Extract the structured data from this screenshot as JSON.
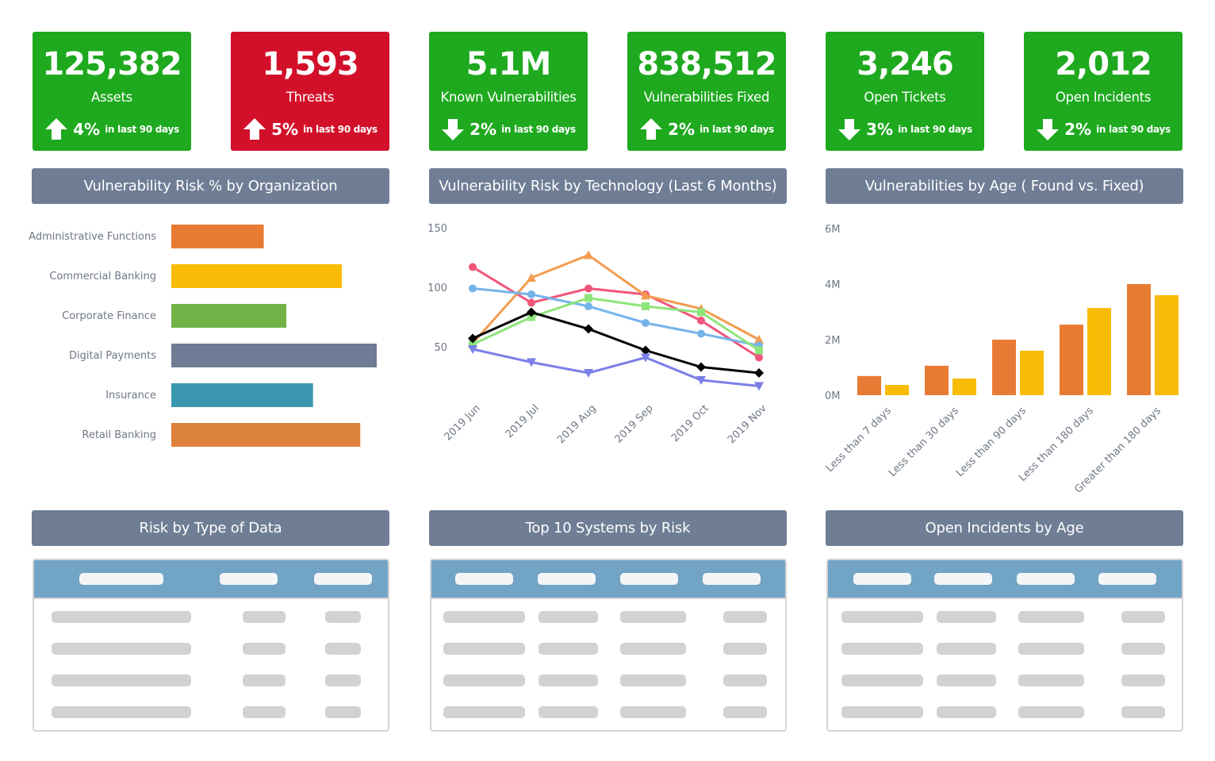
{
  "kpis": [
    {
      "value": "125,382",
      "label": "Assets",
      "direction": "up",
      "pct": "4%",
      "period": "in last 90 days",
      "color": "#1ea91e"
    },
    {
      "value": "1,593",
      "label": "Threats",
      "direction": "up",
      "pct": "5%",
      "period": "in last 90 days",
      "color": "#d2102a"
    },
    {
      "value": "5.1M",
      "label": "Known Vulnerabilities",
      "direction": "down",
      "pct": "2%",
      "period": "in last 90 days",
      "color": "#1ea91e"
    },
    {
      "value": "838,512",
      "label": "Vulnerabilities Fixed",
      "direction": "up",
      "pct": "2%",
      "period": "in last 90 days",
      "color": "#1ea91e"
    },
    {
      "value": "3,246",
      "label": "Open Tickets",
      "direction": "down",
      "pct": "3%",
      "period": "in last 90 days",
      "color": "#1ea91e"
    },
    {
      "value": "2,012",
      "label": "Open Incidents",
      "direction": "down",
      "pct": "2%",
      "period": "in last 90 days",
      "color": "#1ea91e"
    }
  ],
  "panels": {
    "org_title": "Vulnerability Risk % by Organization",
    "tech_title": "Vulnerability Risk by Technology (Last 6 Months)",
    "age_title": "Vulnerabilities by Age ( Found vs. Fixed)",
    "data_type_title": "Risk by Type of Data",
    "systems_title": "Top 10 Systems by Risk",
    "incidents_title": "Open Incidents by Age"
  },
  "chart_data": [
    {
      "type": "bar",
      "orientation": "horizontal",
      "categories": [
        "Administrative Functions",
        "Commercial Banking",
        "Corporate Finance",
        "Digital Payments",
        "Insurance",
        "Retail Banking"
      ],
      "values": [
        45,
        83,
        56,
        100,
        69,
        92
      ],
      "colors": [
        "#e87b33",
        "#f9bc06",
        "#72b347",
        "#6e7c96",
        "#3b97b0",
        "#dd823c"
      ],
      "grid": false
    },
    {
      "type": "line",
      "categories": [
        "2019 Jun",
        "2019 Jul",
        "2019 Aug",
        "2019 Sep",
        "2019 Oct",
        "2019 Nov"
      ],
      "yticks": [
        "50",
        "100",
        "150"
      ],
      "ylim": [
        0,
        150
      ],
      "grid": false,
      "series": [
        {
          "values": [
            117,
            87,
            99,
            94,
            72,
            41
          ],
          "color": "#f0557a",
          "marker": "circle"
        },
        {
          "values": [
            53,
            108,
            127,
            93,
            82,
            56
          ],
          "color": "#f39c50",
          "marker": "triangle-up"
        },
        {
          "values": [
            99,
            94,
            84,
            70,
            61,
            51
          ],
          "color": "#75b4ea",
          "marker": "circle"
        },
        {
          "values": [
            52,
            75,
            91,
            84,
            79,
            47
          ],
          "color": "#8de57a",
          "marker": "square"
        },
        {
          "values": [
            57,
            79,
            65,
            47,
            33,
            28
          ],
          "color": "#000000",
          "marker": "diamond"
        },
        {
          "values": [
            48,
            37,
            28,
            41,
            22,
            17
          ],
          "color": "#7b7fe8",
          "marker": "triangle-down"
        }
      ]
    },
    {
      "type": "bar",
      "categories": [
        "Less than 7 days",
        "Less than 30 days",
        "Less than 90 days",
        "Less than 180 days",
        "Greater than 180 days"
      ],
      "yticks": [
        "0M",
        "2M",
        "4M",
        "6M"
      ],
      "ylim": [
        0,
        6000000
      ],
      "grid": false,
      "series": [
        {
          "values": [
            690000,
            1060000,
            2000000,
            2540000,
            4000000
          ],
          "color": "#e87b33"
        },
        {
          "values": [
            370000,
            600000,
            1600000,
            3140000,
            3600000
          ],
          "color": "#f9bc06"
        }
      ]
    }
  ],
  "colors": {
    "header": "#6f7d95",
    "table_band": "#72a4c6",
    "placeholder": "#d2d2d2",
    "header_placeholder": "#f4f5f7"
  }
}
